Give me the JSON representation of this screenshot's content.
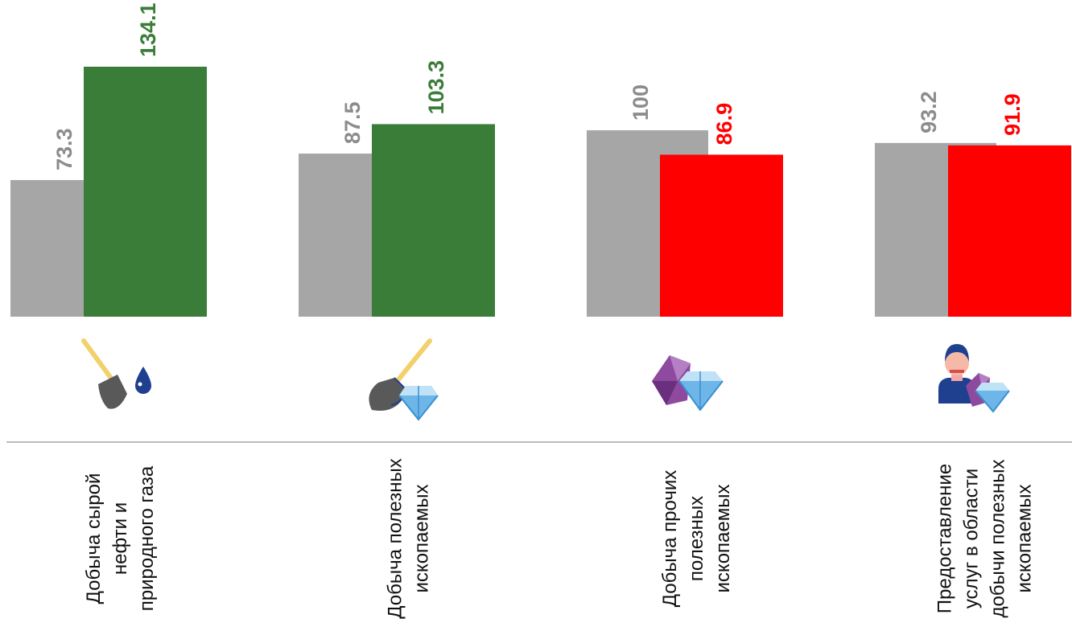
{
  "chart_data": {
    "type": "bar",
    "categories": [
      [
        "Добыча сырой",
        "нефти и",
        "природного газа"
      ],
      [
        "Добыча полезных",
        "ископаемых"
      ],
      [
        "Добыча прочих",
        "полезных",
        "ископаемых"
      ],
      [
        "Предоставление",
        "услуг в области",
        "добычи полезных",
        "ископаемых"
      ]
    ],
    "series": [
      {
        "values": [
          73.3,
          87.5,
          100,
          93.2
        ],
        "color": "#a6a6a6",
        "label_color": "#8c8c8c"
      },
      {
        "values": [
          134.1,
          103.3,
          86.9,
          91.9
        ],
        "colors": [
          "#3a7d38",
          "#3a7d38",
          "#ff0000",
          "#ff0000"
        ]
      }
    ],
    "value_labels": [
      [
        "73.3",
        "87.5",
        "100",
        "93.2"
      ],
      [
        "134.1",
        "103.3",
        "86.9",
        "91.9"
      ]
    ],
    "icons": [
      "shovel-oil-drop-icon",
      "shovel-diamond-icon",
      "minerals-diamond-icon",
      "worker-minerals-icon"
    ],
    "ylim": [
      0,
      134.1
    ],
    "grid": false,
    "legend": "none"
  }
}
